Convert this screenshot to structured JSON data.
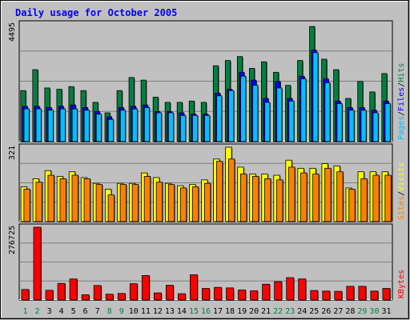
{
  "chart_data": {
    "type": "bar",
    "title": "Daily usage for October 2005",
    "categories": [
      "1",
      "2",
      "3",
      "4",
      "5",
      "6",
      "7",
      "8",
      "9",
      "10",
      "11",
      "12",
      "13",
      "14",
      "15",
      "16",
      "17",
      "18",
      "19",
      "20",
      "21",
      "22",
      "23",
      "24",
      "25",
      "26",
      "27",
      "28",
      "29",
      "30",
      "31"
    ],
    "weekend_days": [
      "1",
      "2",
      "8",
      "9",
      "15",
      "16",
      "22",
      "23",
      "29",
      "30"
    ],
    "panels": [
      {
        "id": "hits",
        "max_label": "4495",
        "ylim": [
          0,
          4495
        ],
        "legend": [
          {
            "text": "Pages",
            "color": "#00c0ff"
          },
          {
            "text": "/",
            "color": "#000000"
          },
          {
            "text": "Files",
            "color": "#0000ff"
          },
          {
            "text": "/",
            "color": "#000000"
          },
          {
            "text": "Hits",
            "color": "#008040"
          }
        ],
        "series": [
          {
            "name": "Hits",
            "color": "#008040",
            "values": [
              1950,
              2750,
              2050,
              2000,
              2100,
              1950,
              1500,
              1100,
              1950,
              2450,
              2350,
              1700,
              1500,
              1500,
              1550,
              1500,
              2900,
              3100,
              3250,
              2800,
              3050,
              2650,
              2150,
              3100,
              4400,
              3150,
              2750,
              1650,
              2300,
              1900,
              2600
            ]
          },
          {
            "name": "Files",
            "color": "#0000ff",
            "values": [
              1350,
              1350,
              1300,
              1350,
              1400,
              1300,
              1150,
              950,
              1300,
              1350,
              1400,
              1150,
              1150,
              1100,
              1050,
              1050,
              1850,
              2000,
              2650,
              2350,
              1650,
              2300,
              1650,
              2500,
              3500,
              2400,
              1550,
              1300,
              1300,
              1200,
              1550
            ]
          },
          {
            "name": "Pages",
            "color": "#00c0ff",
            "values": [
              1250,
              1250,
              1200,
              1250,
              1250,
              1200,
              1050,
              850,
              1200,
              1250,
              1300,
              1100,
              1100,
              1000,
              1000,
              1000,
              1750,
              1950,
              2500,
              2150,
              1500,
              2050,
              1550,
              2400,
              3400,
              2250,
              1450,
              1200,
              1200,
              1100,
              1450
            ]
          }
        ]
      },
      {
        "id": "visits",
        "max_label": "321",
        "ylim": [
          0,
          321
        ],
        "legend": [
          {
            "text": "Sites",
            "color": "#ff8000"
          },
          {
            "text": "/",
            "color": "#000000"
          },
          {
            "text": "Visits",
            "color": "#ffff00"
          }
        ],
        "series": [
          {
            "name": "Visits",
            "color": "#ffff00",
            "values": [
              150,
              185,
              220,
              195,
              215,
              190,
              165,
              140,
              165,
              165,
              210,
              190,
              165,
              155,
              160,
              180,
              270,
              321,
              235,
              205,
              205,
              200,
              265,
              230,
              230,
              250,
              240,
              145,
              215,
              215,
              215
            ]
          },
          {
            "name": "Sites",
            "color": "#ff8000",
            "values": [
              140,
              170,
              200,
              185,
              200,
              185,
              160,
              115,
              160,
              160,
              195,
              170,
              160,
              145,
              150,
              165,
              260,
              270,
              205,
              195,
              185,
              180,
              235,
              210,
              205,
              230,
              215,
              140,
              185,
              200,
              200
            ]
          }
        ]
      },
      {
        "id": "kbytes",
        "max_label": "276725",
        "ylim": [
          0,
          276725
        ],
        "legend": [
          {
            "text": "KBytes",
            "color": "#ff0000"
          }
        ],
        "series": [
          {
            "name": "KBytes",
            "color": "#ff0000",
            "values": [
              40000,
              276725,
              37000,
              63000,
              80000,
              20000,
              55000,
              22000,
              25000,
              62000,
              93000,
              27000,
              56000,
              24000,
              96000,
              44000,
              48000,
              46000,
              38000,
              35000,
              60000,
              70000,
              85000,
              80000,
              36000,
              34000,
              33000,
              52000,
              52000,
              34000,
              44000
            ]
          }
        ]
      }
    ]
  }
}
